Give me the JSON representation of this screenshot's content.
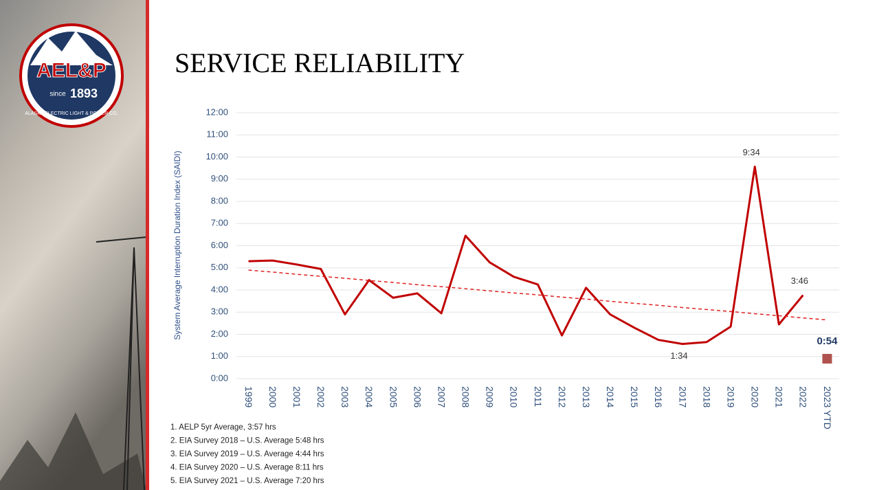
{
  "logo": {
    "name": "AEL&P",
    "since": "since",
    "year": "1893",
    "company": "ALASKA ELECTRIC LIGHT & POWER CO."
  },
  "chart_data": {
    "type": "line",
    "title": "SERVICE RELIABILITY",
    "y_label": "System Average Interruption Duration Index (SAIDI)",
    "categories": [
      "1999",
      "2000",
      "2001",
      "2002",
      "2003",
      "2004",
      "2005",
      "2006",
      "2007",
      "2008",
      "2009",
      "2010",
      "2011",
      "2012",
      "2013",
      "2014",
      "2015",
      "2016",
      "2017",
      "2018",
      "2019",
      "2020",
      "2021",
      "2022",
      "2023 YTD"
    ],
    "series": [
      {
        "type": "line",
        "color": "#c00000",
        "values": [
          5.3,
          5.33,
          5.15,
          4.95,
          2.9,
          4.45,
          3.65,
          3.85,
          2.95,
          6.45,
          5.25,
          4.6,
          4.25,
          1.95,
          4.1,
          2.9,
          2.3,
          1.75,
          1.567,
          1.65,
          2.35,
          9.567,
          2.45,
          3.767,
          null
        ],
        "value_labels": [
          null,
          null,
          null,
          null,
          null,
          null,
          null,
          null,
          null,
          null,
          null,
          null,
          null,
          null,
          null,
          null,
          null,
          null,
          "1:34",
          null,
          null,
          "9:34",
          null,
          "3:46",
          null
        ]
      },
      {
        "type": "trend",
        "color": "#e02020",
        "values": [
          4.9,
          4.81,
          4.71,
          4.62,
          4.53,
          4.43,
          4.34,
          4.24,
          4.15,
          4.06,
          3.96,
          3.87,
          3.78,
          3.68,
          3.59,
          3.49,
          3.4,
          3.31,
          3.21,
          3.12,
          3.03,
          2.93,
          2.84,
          2.74,
          2.65
        ]
      },
      {
        "type": "marker",
        "color": "#b0524e",
        "values": [
          null,
          null,
          null,
          null,
          null,
          null,
          null,
          null,
          null,
          null,
          null,
          null,
          null,
          null,
          null,
          null,
          null,
          null,
          null,
          null,
          null,
          null,
          null,
          null,
          0.9
        ],
        "value_labels": [
          null,
          null,
          null,
          null,
          null,
          null,
          null,
          null,
          null,
          null,
          null,
          null,
          null,
          null,
          null,
          null,
          null,
          null,
          null,
          null,
          null,
          null,
          null,
          null,
          "0:54"
        ]
      }
    ],
    "ylim": [
      0,
      12
    ],
    "yticks": [
      {
        "value": 0,
        "label": "0:00"
      },
      {
        "value": 1,
        "label": "1:00"
      },
      {
        "value": 2,
        "label": "2:00"
      },
      {
        "value": 3,
        "label": "3:00"
      },
      {
        "value": 4,
        "label": "4:00"
      },
      {
        "value": 5,
        "label": "5:00"
      },
      {
        "value": 6,
        "label": "6:00"
      },
      {
        "value": 7,
        "label": "7:00"
      },
      {
        "value": 8,
        "label": "8:00"
      },
      {
        "value": 9,
        "label": "9:00"
      },
      {
        "value": 10,
        "label": "10:00"
      },
      {
        "value": 11,
        "label": "11:00"
      },
      {
        "value": 12,
        "label": "12:00"
      }
    ],
    "grid": true,
    "footnotes": [
      "1. AELP 5yr Average, 3:57 hrs",
      "2. EIA Survey 2018 – U.S. Average 5:48 hrs",
      "3. EIA Survey 2019 – U.S. Average 4:44 hrs",
      "4. EIA Survey 2020 – U.S. Average 8:11 hrs",
      "5. EIA Survey 2021 – U.S. Average 7:20 hrs"
    ]
  }
}
